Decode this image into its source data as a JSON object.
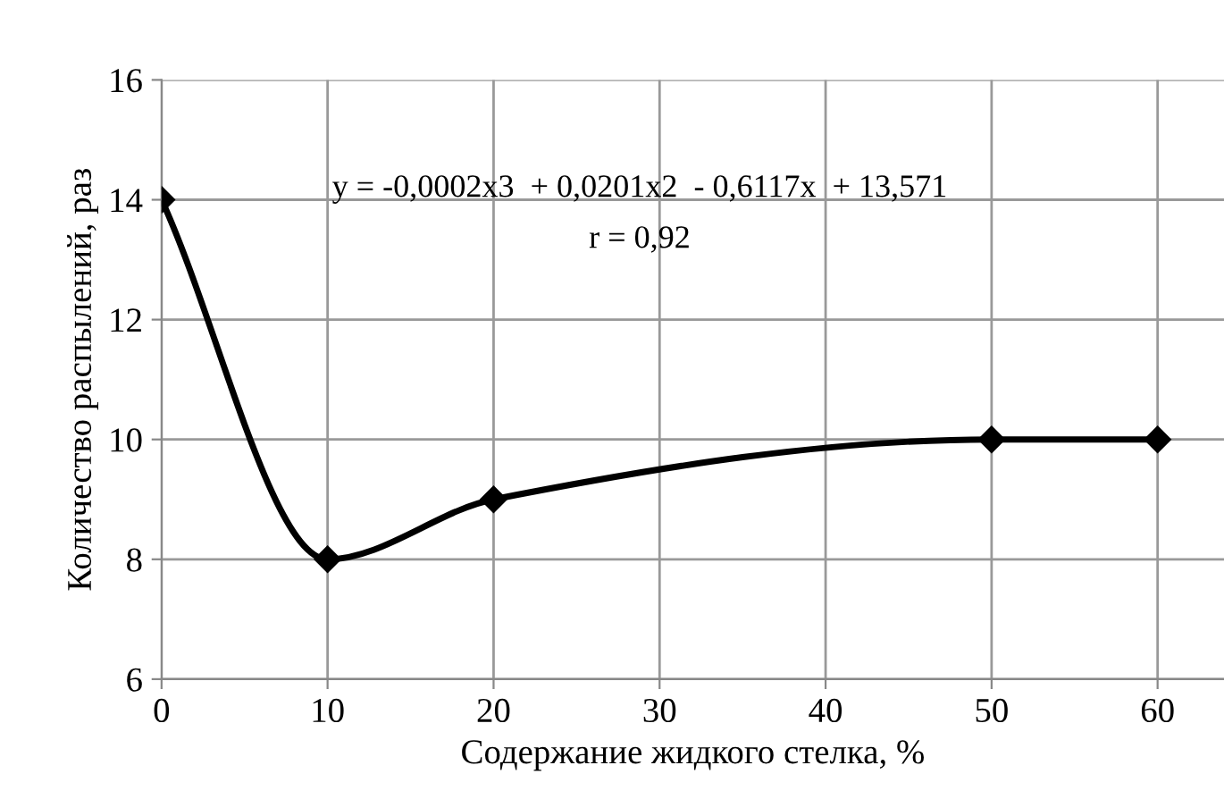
{
  "chart_data": {
    "type": "line",
    "xlabel": "Содержание жидкого стелка, %",
    "ylabel": "Количество распылений, раз",
    "x": [
      0,
      10,
      20,
      50,
      60
    ],
    "series": [
      {
        "color": "#000000",
        "values": [
          14,
          8,
          9,
          10,
          10
        ]
      }
    ],
    "xlim": [
      0,
      64
    ],
    "xticks": [
      0,
      10,
      20,
      30,
      40,
      50,
      60
    ],
    "ylim": [
      6,
      16
    ],
    "yticks": [
      6,
      8,
      10,
      12,
      14,
      16
    ],
    "grid": true,
    "marker": "diamond",
    "line_style": "solid",
    "legend": false,
    "annotations": [
      "y = -0,0002x3  + 0,0201x2  - 0,6117x  + 13,571",
      "r = 0,92"
    ]
  }
}
